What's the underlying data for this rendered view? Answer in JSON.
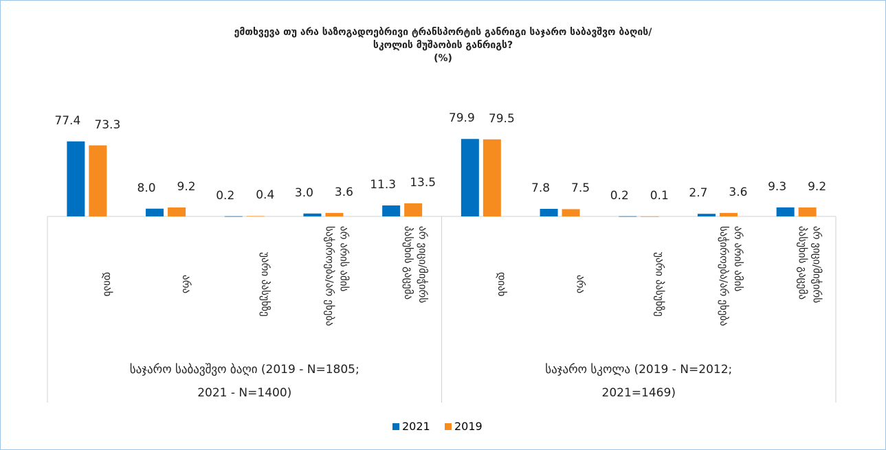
{
  "chart_data": {
    "type": "bar",
    "title": [
      "ემთხვევა თუ არა საზოგადოებრივი ტრანსპორტის განრიგი  საჯარო საბავშვო ბაღის/",
      "სკოლის მუშაობის განრიგს?",
      "(%)"
    ],
    "category_groups": [
      {
        "name": "საჯარო საბავშვო ბაღი (2019 - N=1805; 2021 - N=1400)",
        "categories": [
          "დიახ",
          "არა",
          "უარი პასუხზე",
          "არ არის ამის საჭიროება/არ ეხება",
          "არ ვიცი/მიჭირს პასუხის გაცემა"
        ]
      },
      {
        "name": "საჯარო სკოლა (2019 - N=2012; 2021=1469)",
        "categories": [
          "დიახ",
          "არა",
          "უარი პასუხზე",
          "არ არის ამის საჭიროება/არ ეხება",
          "არ ვიცი/მიჭირს პასუხის გაცემა"
        ]
      }
    ],
    "series": [
      {
        "name": "2021",
        "color": "#0070c0",
        "values": [
          77.4,
          8.0,
          0.2,
          3.0,
          11.3,
          79.9,
          7.8,
          0.2,
          2.7,
          9.3
        ],
        "value_labels": [
          "77.4",
          "8.0",
          "0.2",
          "3.0",
          "11.3",
          "79.9",
          "7.8",
          "0.2",
          "2.7",
          "9.3"
        ]
      },
      {
        "name": "2019",
        "color": "#f68b1f",
        "values": [
          73.3,
          9.2,
          0.4,
          3.6,
          13.5,
          79.5,
          7.5,
          0.1,
          3.6,
          9.2
        ],
        "value_labels": [
          "73.3",
          "9.2",
          "0.4",
          "3.6",
          "13.5",
          "79.5",
          "7.5",
          "0.1",
          "3.6",
          "9.2"
        ]
      }
    ],
    "ylim": [
      0,
      90
    ],
    "legend": "bottom"
  }
}
